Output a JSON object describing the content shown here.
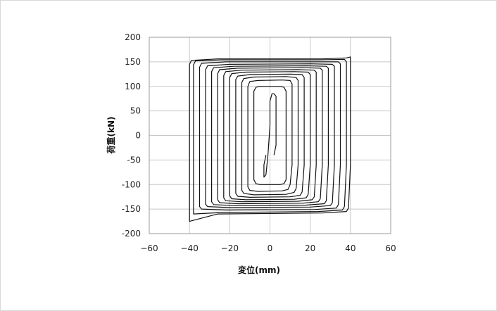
{
  "chart_data": {
    "type": "line",
    "title": "",
    "xlabel": "変位(mm)",
    "ylabel": "荷重(kN)",
    "xlim": [
      -60,
      60
    ],
    "ylim": [
      -200,
      200
    ],
    "x_ticks": [
      -60,
      -40,
      -20,
      0,
      20,
      40,
      60
    ],
    "y_ticks": [
      -200,
      -150,
      -100,
      -50,
      0,
      50,
      100,
      150,
      200
    ],
    "x_tick_labels": [
      "−60",
      "−40",
      "−20",
      "0",
      "20",
      "40",
      "60"
    ],
    "y_tick_labels": [
      "-200",
      "-150",
      "-100",
      "-50",
      "0",
      "50",
      "100",
      "150",
      "200"
    ],
    "grid": true,
    "legend": "none",
    "line_color": "#111111",
    "grid_color": "#c8c8c8",
    "series": [
      {
        "values": [
          [
            2,
            -40
          ],
          [
            3,
            -20
          ],
          [
            3,
            20
          ],
          [
            3,
            60
          ],
          [
            3,
            80
          ],
          [
            2,
            85
          ],
          [
            1,
            85
          ],
          [
            0,
            70
          ],
          [
            0,
            20
          ],
          [
            -1,
            -40
          ],
          [
            -2,
            -80
          ],
          [
            -3,
            -85
          ],
          [
            -3,
            -60
          ],
          [
            -2,
            -40
          ]
        ]
      },
      {
        "values": [
          [
            8,
            -90
          ],
          [
            8,
            -60
          ],
          [
            8,
            0
          ],
          [
            8,
            60
          ],
          [
            8,
            90
          ],
          [
            7,
            98
          ],
          [
            5,
            100
          ],
          [
            3,
            100
          ],
          [
            -3,
            100
          ],
          [
            -5,
            100
          ],
          [
            -7,
            98
          ],
          [
            -8,
            90
          ],
          [
            -8,
            60
          ],
          [
            -8,
            0
          ],
          [
            -8,
            -60
          ],
          [
            -8,
            -90
          ],
          [
            -7,
            -98
          ],
          [
            -5,
            -100
          ],
          [
            -3,
            -100
          ],
          [
            3,
            -100
          ],
          [
            5,
            -100
          ],
          [
            7,
            -98
          ],
          [
            8,
            -90
          ]
        ]
      },
      {
        "values": [
          [
            10,
            -100
          ],
          [
            11,
            -60
          ],
          [
            11,
            0
          ],
          [
            11,
            60
          ],
          [
            11,
            105
          ],
          [
            10,
            112
          ],
          [
            6,
            113
          ],
          [
            -6,
            112
          ],
          [
            -10,
            110
          ],
          [
            -11,
            100
          ],
          [
            -11,
            60
          ],
          [
            -11,
            0
          ],
          [
            -11,
            -60
          ],
          [
            -11,
            -105
          ],
          [
            -10,
            -112
          ],
          [
            -6,
            -114
          ],
          [
            6,
            -113
          ],
          [
            9,
            -110
          ],
          [
            10,
            -100
          ]
        ]
      },
      {
        "values": [
          [
            13,
            -108
          ],
          [
            14,
            -60
          ],
          [
            14,
            0
          ],
          [
            14,
            60
          ],
          [
            14,
            112
          ],
          [
            13,
            118
          ],
          [
            8,
            120
          ],
          [
            -8,
            119
          ],
          [
            -13,
            116
          ],
          [
            -14,
            108
          ],
          [
            -14,
            60
          ],
          [
            -14,
            0
          ],
          [
            -14,
            -60
          ],
          [
            -14,
            -112
          ],
          [
            -13,
            -118
          ],
          [
            -8,
            -121
          ],
          [
            8,
            -120
          ],
          [
            12,
            -116
          ],
          [
            13,
            -108
          ]
        ]
      },
      {
        "values": [
          [
            16,
            -115
          ],
          [
            17,
            -60
          ],
          [
            17,
            0
          ],
          [
            17,
            60
          ],
          [
            17,
            118
          ],
          [
            16,
            124
          ],
          [
            10,
            125
          ],
          [
            -10,
            124
          ],
          [
            -16,
            121
          ],
          [
            -17,
            114
          ],
          [
            -17,
            60
          ],
          [
            -17,
            0
          ],
          [
            -17,
            -60
          ],
          [
            -17,
            -118
          ],
          [
            -16,
            -124
          ],
          [
            -10,
            -126
          ],
          [
            10,
            -125
          ],
          [
            15,
            -122
          ],
          [
            16,
            -115
          ]
        ]
      },
      {
        "values": [
          [
            19,
            -120
          ],
          [
            20,
            -60
          ],
          [
            20,
            0
          ],
          [
            20,
            60
          ],
          [
            20,
            124
          ],
          [
            19,
            129
          ],
          [
            12,
            130
          ],
          [
            -12,
            129
          ],
          [
            -19,
            126
          ],
          [
            -20,
            118
          ],
          [
            -20,
            60
          ],
          [
            -20,
            0
          ],
          [
            -20,
            -60
          ],
          [
            -20,
            -123
          ],
          [
            -19,
            -129
          ],
          [
            -12,
            -131
          ],
          [
            12,
            -130
          ],
          [
            18,
            -127
          ],
          [
            19,
            -120
          ]
        ]
      },
      {
        "values": [
          [
            22,
            -125
          ],
          [
            23,
            -60
          ],
          [
            23,
            0
          ],
          [
            23,
            60
          ],
          [
            23,
            129
          ],
          [
            22,
            133
          ],
          [
            14,
            134
          ],
          [
            -14,
            133
          ],
          [
            -22,
            130
          ],
          [
            -23,
            122
          ],
          [
            -23,
            60
          ],
          [
            -23,
            0
          ],
          [
            -23,
            -60
          ],
          [
            -23,
            -127
          ],
          [
            -22,
            -133
          ],
          [
            -14,
            -135
          ],
          [
            14,
            -134
          ],
          [
            21,
            -131
          ],
          [
            22,
            -125
          ]
        ]
      },
      {
        "values": [
          [
            25,
            -129
          ],
          [
            26,
            -60
          ],
          [
            26,
            0
          ],
          [
            26,
            60
          ],
          [
            26,
            133
          ],
          [
            25,
            137
          ],
          [
            16,
            138
          ],
          [
            -16,
            137
          ],
          [
            -25,
            134
          ],
          [
            -26,
            126
          ],
          [
            -26,
            60
          ],
          [
            -26,
            0
          ],
          [
            -26,
            -60
          ],
          [
            -26,
            -131
          ],
          [
            -25,
            -137
          ],
          [
            -16,
            -139
          ],
          [
            16,
            -138
          ],
          [
            24,
            -135
          ],
          [
            25,
            -129
          ]
        ]
      },
      {
        "values": [
          [
            28,
            -133
          ],
          [
            29,
            -60
          ],
          [
            29,
            0
          ],
          [
            29,
            60
          ],
          [
            29,
            137
          ],
          [
            28,
            141
          ],
          [
            18,
            142
          ],
          [
            -18,
            141
          ],
          [
            -28,
            138
          ],
          [
            -29,
            130
          ],
          [
            -29,
            60
          ],
          [
            -29,
            0
          ],
          [
            -29,
            -60
          ],
          [
            -29,
            -135
          ],
          [
            -28,
            -141
          ],
          [
            -18,
            -143
          ],
          [
            18,
            -142
          ],
          [
            27,
            -139
          ],
          [
            28,
            -133
          ]
        ]
      },
      {
        "values": [
          [
            31,
            -137
          ],
          [
            32,
            -60
          ],
          [
            32,
            0
          ],
          [
            32,
            60
          ],
          [
            32,
            141
          ],
          [
            31,
            145
          ],
          [
            20,
            146
          ],
          [
            -20,
            145
          ],
          [
            -31,
            142
          ],
          [
            -32,
            134
          ],
          [
            -32,
            60
          ],
          [
            -32,
            0
          ],
          [
            -32,
            -60
          ],
          [
            -32,
            -140
          ],
          [
            -31,
            -145
          ],
          [
            -20,
            -147
          ],
          [
            20,
            -146
          ],
          [
            30,
            -143
          ],
          [
            31,
            -137
          ]
        ]
      },
      {
        "values": [
          [
            34,
            -141
          ],
          [
            35,
            -60
          ],
          [
            35,
            0
          ],
          [
            35,
            60
          ],
          [
            35,
            146
          ],
          [
            34,
            150
          ],
          [
            22,
            150
          ],
          [
            -22,
            150
          ],
          [
            -34,
            147
          ],
          [
            -35,
            139
          ],
          [
            -35,
            60
          ],
          [
            -35,
            0
          ],
          [
            -35,
            -60
          ],
          [
            -35,
            -145
          ],
          [
            -34,
            -150
          ],
          [
            -22,
            -152
          ],
          [
            22,
            -151
          ],
          [
            33,
            -148
          ],
          [
            34,
            -141
          ]
        ]
      },
      {
        "values": [
          [
            37,
            -145
          ],
          [
            38,
            -60
          ],
          [
            38,
            0
          ],
          [
            38,
            60
          ],
          [
            38,
            150
          ],
          [
            37,
            155
          ],
          [
            24,
            154
          ],
          [
            -24,
            154
          ],
          [
            -37,
            152
          ],
          [
            -38,
            144
          ],
          [
            -38,
            60
          ],
          [
            -38,
            0
          ],
          [
            -38,
            -60
          ],
          [
            -38,
            -152
          ],
          [
            -38,
            -160
          ],
          [
            -24,
            -157
          ],
          [
            24,
            -155
          ],
          [
            36,
            -152
          ],
          [
            37,
            -145
          ]
        ]
      },
      {
        "values": [
          [
            39,
            -148
          ],
          [
            40,
            -60
          ],
          [
            40,
            0
          ],
          [
            40,
            60
          ],
          [
            40,
            160
          ],
          [
            38,
            158
          ],
          [
            26,
            156
          ],
          [
            -26,
            156
          ],
          [
            -39,
            153
          ],
          [
            -40,
            145
          ],
          [
            -40,
            60
          ],
          [
            -40,
            0
          ],
          [
            -40,
            -60
          ],
          [
            -40,
            -160
          ],
          [
            -40,
            -175
          ],
          [
            -26,
            -160
          ],
          [
            26,
            -158
          ],
          [
            38,
            -155
          ],
          [
            39,
            -148
          ]
        ]
      }
    ]
  }
}
